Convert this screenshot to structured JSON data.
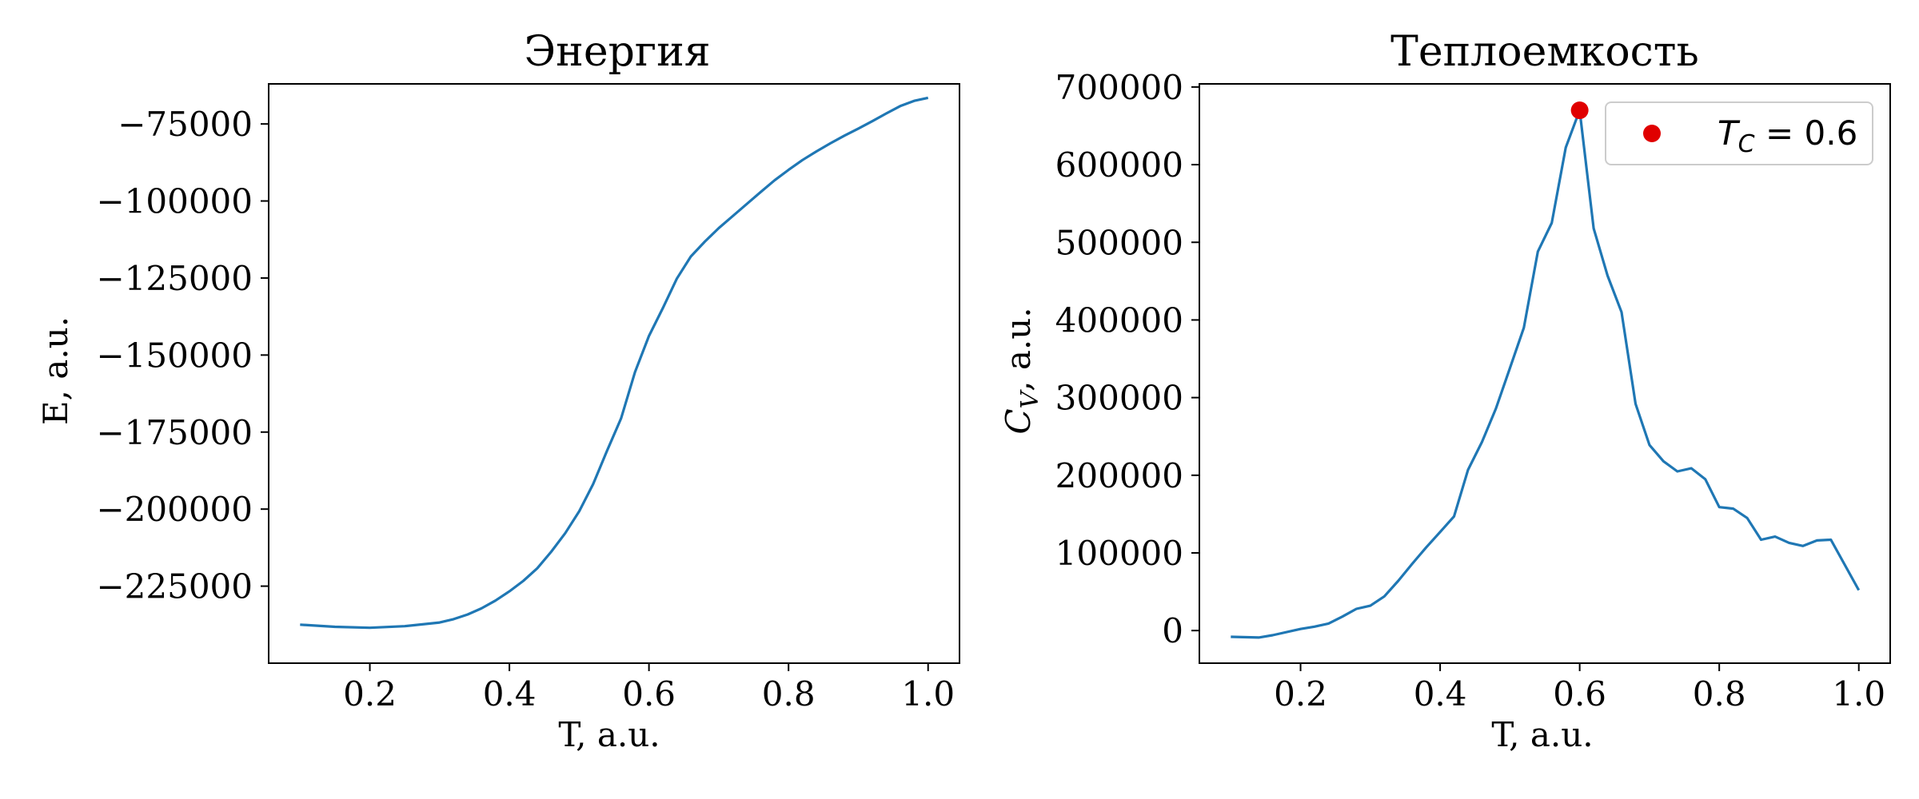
{
  "chart_data": [
    {
      "type": "line",
      "title": "Энергия",
      "xlabel": "T, a.u.",
      "ylabel": "E, a.u.",
      "xlim": [
        0.055,
        1.045
      ],
      "ylim": [
        -250000,
        -62000
      ],
      "xticks": [
        0.2,
        0.4,
        0.6,
        0.8,
        1.0
      ],
      "xtick_labels": [
        "0.2",
        "0.4",
        "0.6",
        "0.8",
        "1.0"
      ],
      "yticks": [
        -225000,
        -200000,
        -175000,
        -150000,
        -125000,
        -100000,
        -75000
      ],
      "ytick_labels": [
        "−225000",
        "−200000",
        "−175000",
        "−150000",
        "−125000",
        "−100000",
        "−75000"
      ],
      "grid": false,
      "series": [
        {
          "color": "#1f77b4",
          "x": [
            0.1,
            0.15,
            0.2,
            0.25,
            0.3,
            0.32,
            0.34,
            0.36,
            0.38,
            0.4,
            0.42,
            0.44,
            0.46,
            0.48,
            0.5,
            0.52,
            0.54,
            0.56,
            0.58,
            0.6,
            0.62,
            0.64,
            0.66,
            0.68,
            0.7,
            0.72,
            0.74,
            0.76,
            0.78,
            0.8,
            0.82,
            0.84,
            0.86,
            0.88,
            0.9,
            0.92,
            0.94,
            0.96,
            0.98,
            1.0
          ],
          "y": [
            -237500,
            -238200,
            -238500,
            -238000,
            -236800,
            -235700,
            -234200,
            -232200,
            -229700,
            -226700,
            -223300,
            -219200,
            -213800,
            -207800,
            -200700,
            -191900,
            -181000,
            -170600,
            -155500,
            -143800,
            -134700,
            -125200,
            -118000,
            -113200,
            -108800,
            -104900,
            -101000,
            -97100,
            -93300,
            -89900,
            -86700,
            -83900,
            -81300,
            -78800,
            -76500,
            -74100,
            -71600,
            -69200,
            -67500,
            -66500
          ]
        }
      ]
    },
    {
      "type": "line",
      "title": "Теплоемкость",
      "xlabel": "T, a.u.",
      "ylabel_main": "C",
      "ylabel_sub": "V",
      "ylabel_tail": ", a.u.",
      "xlim": [
        0.055,
        1.045
      ],
      "ylim": [
        -42000,
        704000
      ],
      "xticks": [
        0.2,
        0.4,
        0.6,
        0.8,
        1.0
      ],
      "xtick_labels": [
        "0.2",
        "0.4",
        "0.6",
        "0.8",
        "1.0"
      ],
      "yticks": [
        0,
        100000,
        200000,
        300000,
        400000,
        500000,
        600000,
        700000
      ],
      "ytick_labels": [
        "0",
        "100000",
        "200000",
        "300000",
        "400000",
        "500000",
        "600000",
        "700000"
      ],
      "grid": false,
      "legend_position": "top-right",
      "legend_label_main": "T",
      "legend_label_sub": "C",
      "legend_label_tail": " = 0.6",
      "series": [
        {
          "color": "#1f77b4",
          "x": [
            0.1,
            0.14,
            0.16,
            0.2,
            0.22,
            0.24,
            0.26,
            0.28,
            0.3,
            0.32,
            0.34,
            0.36,
            0.38,
            0.4,
            0.42,
            0.44,
            0.46,
            0.48,
            0.5,
            0.52,
            0.54,
            0.56,
            0.58,
            0.6,
            0.62,
            0.64,
            0.66,
            0.68,
            0.7,
            0.72,
            0.74,
            0.76,
            0.78,
            0.8,
            0.82,
            0.84,
            0.86,
            0.88,
            0.9,
            0.92,
            0.94,
            0.96,
            1.0
          ],
          "y": [
            -8000,
            -9000,
            -6000,
            2000,
            5000,
            9000,
            18000,
            28000,
            32000,
            44000,
            64000,
            86000,
            107000,
            127000,
            147000,
            207000,
            243000,
            286000,
            338000,
            390000,
            488000,
            525000,
            622000,
            670000,
            518000,
            457000,
            410000,
            292000,
            239000,
            218000,
            205000,
            209000,
            195000,
            159000,
            157000,
            145000,
            117000,
            121000,
            113000,
            109000,
            116000,
            117000,
            52000
          ]
        }
      ],
      "marker": {
        "x": 0.6,
        "y": 670000,
        "color": "#e00000"
      }
    }
  ]
}
